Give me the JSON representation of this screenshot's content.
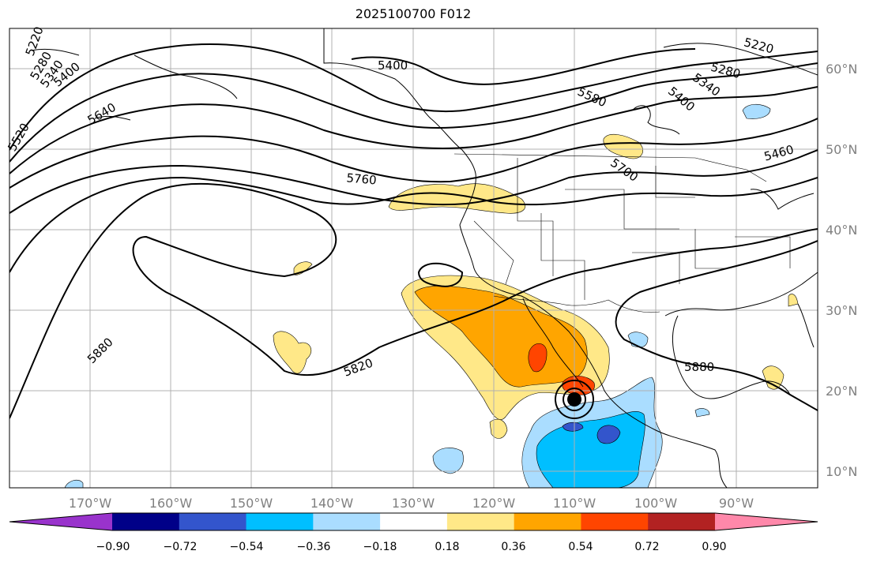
{
  "title": "2025100700 F012",
  "latitude_labels": [
    "60°N",
    "50°N",
    "40°N",
    "30°N",
    "20°N",
    "10°N"
  ],
  "longitude_labels": [
    "170°W",
    "160°W",
    "150°W",
    "140°W",
    "130°W",
    "120°W",
    "110°W",
    "100°W",
    "90°W"
  ],
  "contour_labels": [
    {
      "text": "5400",
      "angle": 0
    },
    {
      "text": "5220",
      "angle": 15
    },
    {
      "text": "5280",
      "angle": 15
    },
    {
      "text": "5340",
      "angle": 35
    },
    {
      "text": "5400",
      "angle": 40
    },
    {
      "text": "5460",
      "angle": -15
    },
    {
      "text": "5580",
      "angle": 25
    },
    {
      "text": "5700",
      "angle": 35
    },
    {
      "text": "5760",
      "angle": 5
    },
    {
      "text": "5640",
      "angle": -30
    },
    {
      "text": "5820",
      "angle": -20
    },
    {
      "text": "5880",
      "angle": -45
    },
    {
      "text": "5880",
      "angle": 0
    },
    {
      "text": "5400",
      "angle": -40
    },
    {
      "text": "5340",
      "angle": -55
    },
    {
      "text": "5280",
      "angle": -60
    },
    {
      "text": "5220",
      "angle": -70
    },
    {
      "text": "5520",
      "angle": -60
    }
  ],
  "colorbar": {
    "colors": [
      "#9933cc",
      "#000088",
      "#3355cc",
      "#00bfff",
      "#aaddff",
      "#ffffff",
      "#ffe888",
      "#ffa500",
      "#ff4500",
      "#b22222",
      "#ff88aa"
    ],
    "tick_labels": [
      "−0.90",
      "−0.72",
      "−0.54",
      "−0.36",
      "−0.18",
      "0.18",
      "0.36",
      "0.54",
      "0.72",
      "0.90"
    ]
  }
}
